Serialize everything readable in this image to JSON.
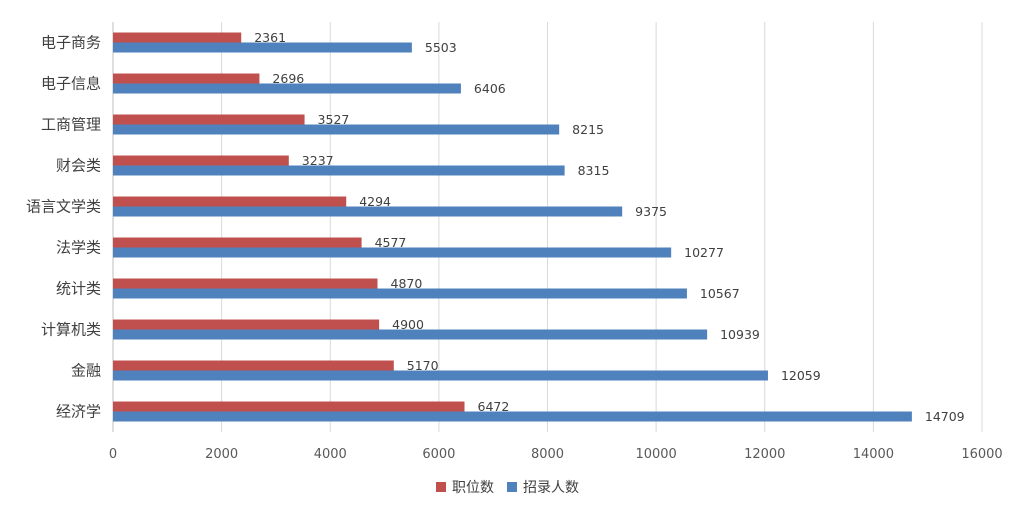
{
  "chart_data": {
    "type": "bar",
    "orientation": "horizontal",
    "categories": [
      "经济学",
      "金融",
      "计算机类",
      "统计类",
      "法学类",
      "语言文学类",
      "财会类",
      "工商管理",
      "电子信息",
      "电子商务"
    ],
    "series": [
      {
        "name": "职位数",
        "color": "#C0504D",
        "values": [
          6472,
          5170,
          4900,
          4870,
          4577,
          4294,
          3237,
          3527,
          2696,
          2361
        ]
      },
      {
        "name": "招录人数",
        "color": "#4F81BD",
        "values": [
          14709,
          12059,
          10939,
          10567,
          10277,
          9375,
          8315,
          8215,
          6406,
          5503
        ]
      }
    ],
    "xlim": [
      0,
      16000
    ],
    "xticks": [
      0,
      2000,
      4000,
      6000,
      8000,
      10000,
      12000,
      14000,
      16000
    ],
    "grid": "vertical",
    "legend_position": "bottom",
    "data_labels": true
  }
}
